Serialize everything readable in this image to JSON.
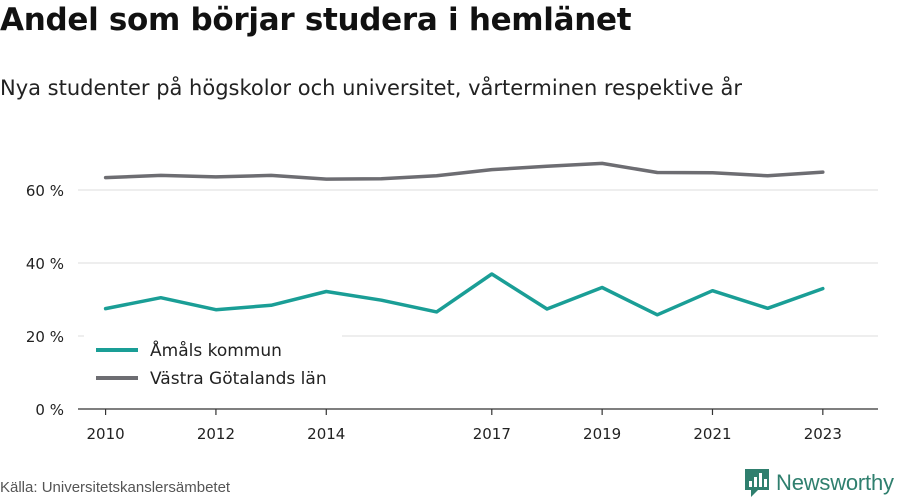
{
  "title": "Andel som börjar studera i hemlänet",
  "subtitle": "Nya studenter på högskolor och universitet, vårterminen respektive år",
  "source": "Källa: Universitetskanslersämbetet",
  "brand": {
    "name": "Newsworthy",
    "icon": "newsworthy-logo-icon",
    "color": "#2f7f6e"
  },
  "chart_data": {
    "type": "line",
    "x": [
      2010,
      2011,
      2012,
      2013,
      2014,
      2015,
      2016,
      2017,
      2018,
      2019,
      2020,
      2021,
      2022,
      2023
    ],
    "x_ticks": [
      2010,
      2012,
      2014,
      2017,
      2019,
      2021,
      2023
    ],
    "y_ticks": [
      0,
      20,
      40,
      60
    ],
    "y_tick_labels": [
      "0 %",
      "20 %",
      "40 %",
      "60 %"
    ],
    "ylim": [
      0,
      70
    ],
    "grid": true,
    "legend_position": "bottom-left",
    "series": [
      {
        "name": "Åmåls kommun",
        "color": "#1a9e96",
        "values": [
          27.5,
          30.5,
          27.2,
          28.4,
          32.2,
          29.8,
          26.6,
          37.0,
          27.4,
          33.3,
          25.8,
          32.4,
          27.6,
          33.0
        ]
      },
      {
        "name": "Västra Götalands län",
        "color": "#6d6d72",
        "values": [
          63.4,
          64.0,
          63.6,
          64.0,
          63.0,
          63.1,
          63.9,
          65.6,
          66.5,
          67.3,
          64.8,
          64.7,
          63.9,
          64.9
        ]
      }
    ]
  }
}
